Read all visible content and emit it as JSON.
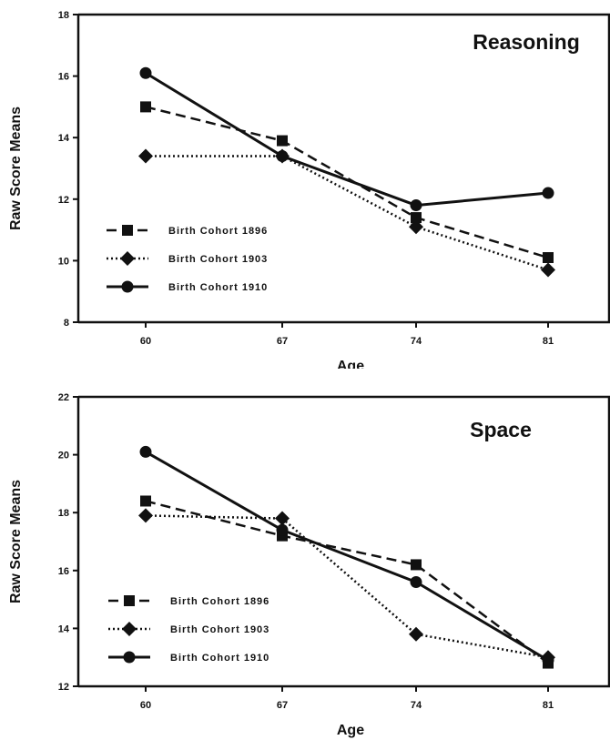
{
  "chart_data": [
    {
      "type": "line",
      "title": "Reasoning",
      "xlabel": "Age",
      "ylabel": "Raw Score Means",
      "x": [
        60,
        67,
        74,
        81
      ],
      "x_tick_labels": [
        "60",
        "67",
        "74",
        "81"
      ],
      "ylim": [
        8,
        18
      ],
      "y_ticks": [
        8,
        10,
        12,
        14,
        16,
        18
      ],
      "y_tick_labels": [
        "8",
        "10",
        "12",
        "14",
        "16",
        "18"
      ],
      "grid": false,
      "legend_position": "bottom-left",
      "series": [
        {
          "name": "Birth Cohort 1896",
          "values": [
            15.0,
            13.9,
            11.4,
            10.1
          ],
          "marker": "square",
          "dash": "dashed"
        },
        {
          "name": "Birth Cohort 1903",
          "values": [
            13.4,
            13.4,
            11.1,
            9.7
          ],
          "marker": "diamond",
          "dash": "dotted"
        },
        {
          "name": "Birth Cohort 1910",
          "values": [
            16.1,
            13.4,
            11.8,
            12.2
          ],
          "marker": "circle",
          "dash": "solid"
        }
      ]
    },
    {
      "type": "line",
      "title": "Space",
      "xlabel": "Age",
      "ylabel": "Raw Score Means",
      "x": [
        60,
        67,
        74,
        81
      ],
      "x_tick_labels": [
        "60",
        "67",
        "74",
        "81"
      ],
      "ylim": [
        12,
        22
      ],
      "y_ticks": [
        12,
        14,
        16,
        18,
        20,
        22
      ],
      "y_tick_labels": [
        "12",
        "14",
        "16",
        "18",
        "20",
        "22"
      ],
      "grid": false,
      "legend_position": "bottom-left",
      "series": [
        {
          "name": "Birth Cohort 1896",
          "values": [
            18.4,
            17.2,
            16.2,
            12.8
          ],
          "marker": "square",
          "dash": "dashed"
        },
        {
          "name": "Birth Cohort 1903",
          "values": [
            17.9,
            17.8,
            13.8,
            13.0
          ],
          "marker": "diamond",
          "dash": "dotted"
        },
        {
          "name": "Birth Cohort 1910",
          "values": [
            20.1,
            17.4,
            15.6,
            12.9
          ],
          "marker": "circle",
          "dash": "solid"
        }
      ]
    }
  ]
}
